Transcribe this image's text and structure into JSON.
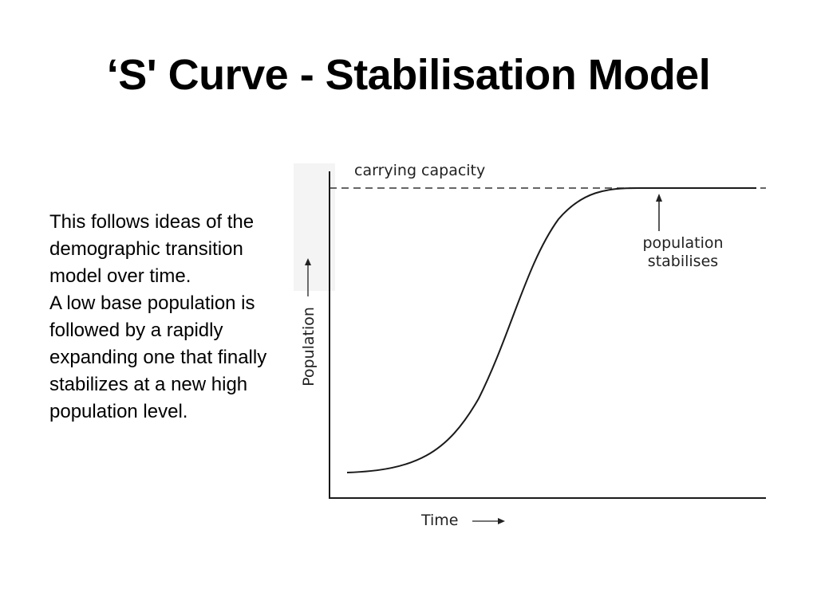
{
  "slide": {
    "title": "‘S' Curve - Stabilisation Model",
    "paragraphs": [
      "This follows ideas of the demographic transition model over time.",
      "A low base population is followed by a rapidly expanding one that finally stabilizes at a new high population level."
    ]
  },
  "diagram": {
    "carrying_capacity_label": "carrying capacity",
    "annotation_line1": "population",
    "annotation_line2": "stabilises",
    "y_axis_label": "Population",
    "x_axis_label": "Time",
    "curve_color": "#1a1a1a",
    "axis_color": "#1a1a1a",
    "dash_color": "#333333"
  }
}
